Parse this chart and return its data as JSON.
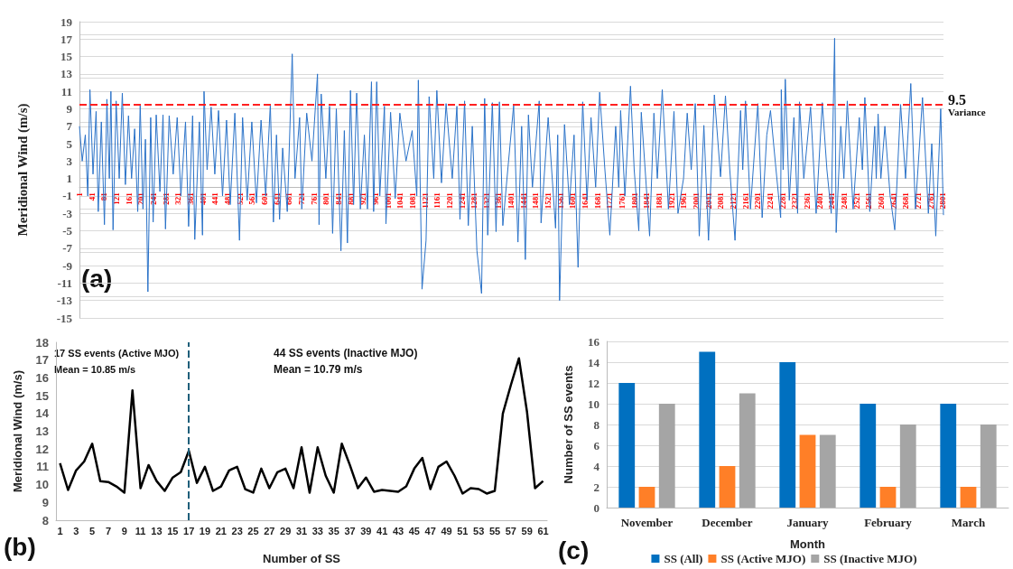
{
  "chart_data": [
    {
      "type": "line",
      "ylabel": "Meridional Wind (m/s)",
      "annotations": [
        "(a)"
      ],
      "x": [
        1,
        10,
        20,
        28,
        35,
        45,
        55,
        62,
        72,
        82,
        90,
        98,
        103,
        110,
        120,
        130,
        140,
        150,
        160,
        170,
        180,
        190,
        198,
        207,
        215,
        223,
        232,
        240,
        250,
        262,
        272,
        280,
        292,
        305,
        318,
        330,
        345,
        355,
        368,
        375,
        390,
        400,
        405,
        415,
        428,
        440,
        452,
        465,
        478,
        490,
        505,
        520,
        530,
        545,
        560,
        575,
        590,
        605,
        620,
        630,
        640,
        650,
        660,
        675,
        691,
        700,
        715,
        722,
        738,
        755,
        773,
        778,
        785,
        800,
        812,
        822,
        834,
        849,
        860,
        870,
        880,
        890,
        900,
        912,
        925,
        935,
        948,
        955,
        965,
        975,
        990,
        995,
        1010,
        1025,
        1040,
        1060,
        1080,
        1095,
        1100,
        1112,
        1125,
        1135,
        1150,
        1160,
        1175,
        1190,
        1210,
        1225,
        1235,
        1250,
        1262,
        1275,
        1290,
        1305,
        1315,
        1325,
        1340,
        1352,
        1363,
        1374,
        1390,
        1409,
        1423,
        1435,
        1447,
        1457,
        1470,
        1492,
        1498,
        1521,
        1545,
        1552,
        1558,
        1574,
        1590,
        1605,
        1618,
        1633,
        1647,
        1660,
        1675,
        1688,
        1705,
        1721,
        1740,
        1750,
        1756,
        1770,
        1788,
        1800,
        1815,
        1823,
        1850,
        1864,
        1875,
        1891,
        1911,
        1929,
        1942,
        1960,
        1972,
        1985,
        1998,
        2011,
        2026,
        2041,
        2060,
        2080,
        2096,
        2110,
        2127,
        2145,
        2152,
        2161,
        2177,
        2201,
        2215,
        2230,
        2242,
        2260,
        2275,
        2277,
        2283,
        2290,
        2303,
        2318,
        2330,
        2336,
        2350,
        2372,
        2390,
        2410,
        2425,
        2439,
        2450,
        2455,
        2470,
        2480,
        2491,
        2510,
        2530,
        2540,
        2548,
        2564,
        2580,
        2585,
        2591,
        2600,
        2613,
        2630,
        2645,
        2664,
        2680,
        2697,
        2712,
        2735,
        2754,
        2765,
        2778,
        2794,
        2803
      ],
      "series": [
        {
          "color": "#2a72c8",
          "values": [
            7,
            3,
            6,
            -1,
            11.2,
            1.5,
            8.7,
            -2.8,
            7.5,
            -4.3,
            10.1,
            1,
            11,
            -4.9,
            9.9,
            1,
            10.8,
            0.3,
            8.2,
            1,
            6.7,
            -2.8,
            9.5,
            -2.5,
            5.5,
            -12,
            8,
            -4,
            8.3,
            -0.5,
            8.3,
            -4.8,
            8.2,
            1.5,
            8,
            -1,
            7.5,
            -4.5,
            8.2,
            -6,
            7.5,
            -5.5,
            11,
            2,
            9.2,
            1.5,
            8.8,
            -1,
            7.7,
            -2,
            8.5,
            -6.1,
            8,
            -1.5,
            7.5,
            -1.8,
            7.7,
            -1,
            9.5,
            -4,
            6,
            -3.7,
            4.5,
            -2.8,
            15.3,
            1,
            8,
            -2.5,
            8.5,
            3,
            13,
            -4.3,
            10.7,
            1,
            9.3,
            -5.3,
            9,
            -7.3,
            6.5,
            -6.4,
            11.1,
            -2,
            10.8,
            -2.5,
            6,
            -2.5,
            12.1,
            -2.8,
            12.1,
            -1,
            9.3,
            -4.2,
            8.6,
            -1.3,
            8.5,
            3,
            6.5,
            -1,
            12.3,
            -11.7,
            -6.1,
            10.4,
            1,
            11.1,
            0.5,
            9.6,
            1,
            9.3,
            -3.7,
            9.9,
            -4.4,
            7,
            -7.3,
            -12.2,
            10.2,
            -5.5,
            9.7,
            -5.1,
            9.8,
            -4.4,
            2,
            9.4,
            -6.3,
            7,
            -8.3,
            8.3,
            0,
            9.9,
            -4.1,
            8,
            -4.7,
            6,
            -13,
            7.2,
            -2,
            6,
            -9.2,
            9.8,
            -1.5,
            8,
            0,
            10.9,
            2,
            -5.5,
            7,
            0,
            8.8,
            -1,
            11.6,
            2,
            -5,
            8.6,
            -5.6,
            8.5,
            1,
            11.2,
            -2.5,
            8.7,
            -3,
            1,
            8.5,
            2,
            9.6,
            -5.6,
            7.1,
            -6.1,
            10.6,
            1.2,
            10.5,
            2,
            -6.1,
            8.8,
            2,
            9.9,
            -2.5,
            9.6,
            -3.5,
            6,
            8.8,
            2,
            -3.5,
            11.2,
            2,
            12.4,
            -1.5,
            8,
            -3,
            9.8,
            1,
            9.2,
            -3,
            9.7,
            2,
            -3,
            17.1,
            -5.2,
            7,
            1,
            9.9,
            -2.5,
            8,
            2,
            10.3,
            -2.8,
            7,
            1,
            8.4,
            1,
            7,
            -1,
            -4.9,
            9.5,
            1,
            11.9,
            -2.5,
            10.3,
            -3,
            5,
            -5.6,
            9,
            -3.2
          ]
        }
      ],
      "xlim": [
        1,
        2803
      ],
      "xticks": [
        1,
        41,
        81,
        121,
        161,
        201,
        241,
        281,
        321,
        361,
        401,
        441,
        481,
        521,
        561,
        601,
        641,
        681,
        721,
        761,
        801,
        841,
        881,
        921,
        961,
        1001,
        1041,
        1081,
        1121,
        1161,
        1201,
        1241,
        1281,
        1321,
        1361,
        1401,
        1441,
        1481,
        1521,
        1561,
        1601,
        1641,
        1681,
        1721,
        1761,
        1801,
        1841,
        1881,
        1921,
        1961,
        2001,
        2041,
        2081,
        2121,
        2161,
        2201,
        2241,
        2281,
        2321,
        2361,
        2401,
        2441,
        2481,
        2521,
        2561,
        2601,
        2641,
        2681,
        2721,
        2761,
        2801
      ],
      "ylim": [
        -15,
        19
      ],
      "yticks": [
        -15,
        -13,
        -11,
        -9,
        -7,
        -5,
        -3,
        -1,
        1,
        3,
        5,
        7,
        9,
        11,
        13,
        15,
        17,
        19
      ],
      "grid": "y",
      "ref_lines": [
        {
          "axis": "y",
          "value": 9.5,
          "label": "9.5\nVariance",
          "color": "#ff2020",
          "line_style": "dashed"
        }
      ]
    },
    {
      "type": "line",
      "xlabel": "Number of SS",
      "ylabel": "Meridional Wind (m/s)",
      "annotations": [
        "17 SS events (Active MJO)",
        "Mean = 10.85 m/s",
        "44 SS events (Inactive MJO)",
        "Mean = 10.79 m/s",
        "(b)"
      ],
      "x": [
        1,
        2,
        3,
        4,
        5,
        6,
        7,
        8,
        9,
        10,
        11,
        12,
        13,
        14,
        15,
        16,
        17,
        18,
        19,
        20,
        21,
        22,
        23,
        24,
        25,
        26,
        27,
        28,
        29,
        30,
        31,
        32,
        33,
        34,
        35,
        36,
        37,
        38,
        39,
        40,
        41,
        42,
        43,
        44,
        45,
        46,
        47,
        48,
        49,
        50,
        51,
        52,
        53,
        54,
        55,
        56,
        57,
        58,
        59,
        60,
        61
      ],
      "xlim": [
        0.5,
        61.5
      ],
      "xticks": [
        1,
        3,
        5,
        7,
        9,
        11,
        13,
        15,
        17,
        19,
        21,
        23,
        25,
        27,
        29,
        31,
        33,
        35,
        37,
        39,
        41,
        43,
        45,
        47,
        49,
        51,
        53,
        55,
        57,
        59,
        61
      ],
      "series": [
        {
          "color": "#000000",
          "values": [
            11.2,
            9.7,
            10.8,
            11.3,
            12.3,
            10.2,
            10.15,
            9.9,
            9.55,
            15.3,
            9.8,
            11.1,
            10.2,
            9.65,
            10.4,
            10.7,
            11.9,
            10.1,
            11,
            9.65,
            9.9,
            10.8,
            11,
            9.75,
            9.55,
            10.9,
            9.8,
            10.7,
            10.9,
            9.8,
            12.1,
            9.55,
            12.1,
            10.5,
            9.55,
            12.3,
            11.1,
            9.8,
            10.4,
            9.6,
            9.7,
            9.65,
            9.6,
            9.9,
            10.9,
            11.5,
            9.75,
            11,
            11.3,
            10.5,
            9.5,
            9.8,
            9.75,
            9.5,
            9.65,
            14,
            15.6,
            17.1,
            14.1,
            9.8,
            10.2
          ]
        }
      ],
      "ylim": [
        8,
        18
      ],
      "yticks": [
        8,
        9,
        10,
        11,
        12,
        13,
        14,
        15,
        16,
        17,
        18
      ],
      "ref_lines": [
        {
          "axis": "x",
          "value": 17,
          "color": "#1f5f7a",
          "line_style": "dashed"
        }
      ]
    },
    {
      "type": "bar",
      "xlabel": "Month",
      "ylabel": "Number of SS events",
      "annotations": [
        "(c)"
      ],
      "categories": [
        "November",
        "December",
        "January",
        "February",
        "March"
      ],
      "series": [
        {
          "name": "SS (All)",
          "color": "#0070c0",
          "values": [
            12,
            15,
            14,
            10,
            10
          ]
        },
        {
          "name": "SS (Active MJO)",
          "color": "#ff7f27",
          "values": [
            2,
            4,
            7,
            2,
            2
          ]
        },
        {
          "name": "SS (Inactive MJO)",
          "color": "#a5a5a5",
          "values": [
            10,
            11,
            7,
            8,
            8
          ]
        }
      ],
      "ylim": [
        0,
        16
      ],
      "yticks": [
        0,
        2,
        4,
        6,
        8,
        10,
        12,
        14,
        16
      ],
      "grid": "y",
      "legend": "bottom"
    }
  ]
}
